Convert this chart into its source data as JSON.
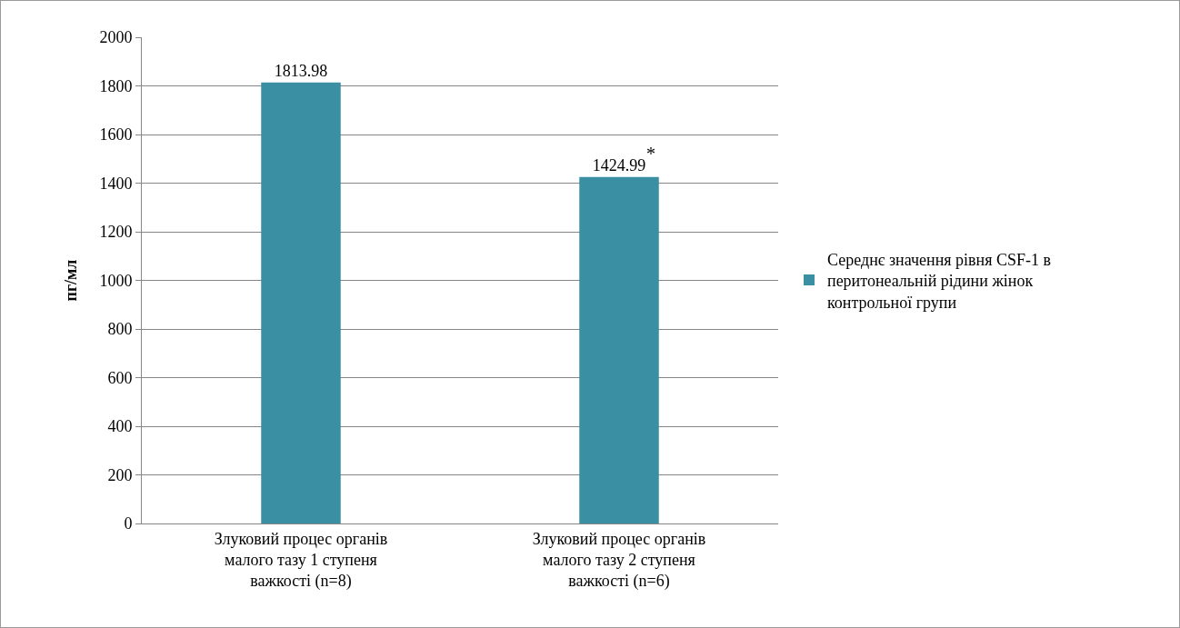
{
  "chart_data": {
    "type": "bar",
    "ylabel": "пг/мл",
    "categories": [
      "Злуковий процес органів малого тазу 1 ступеня важкості (n=8)",
      "Злуковий процес органів малого тазу 2 ступеня важкості (n=6)"
    ],
    "series": [
      {
        "name": "Середнє значення рівня CSF-1 в перитонеальній рідини жінок контрольної групи",
        "color": "#3a8fa3",
        "values": [
          1813.98,
          1424.99
        ],
        "value_labels": [
          "1813.98",
          "1424.99"
        ]
      }
    ],
    "ylim": [
      0,
      2000
    ],
    "yticks": [
      0,
      200,
      400,
      600,
      800,
      1000,
      1200,
      1400,
      1600,
      1800,
      2000
    ],
    "grid": "y",
    "legend": "right",
    "annotations": [
      {
        "text": "*",
        "x": "Злуковий процес органів малого тазу 2 ступеня важкості (n=6)",
        "y": 1424.99
      }
    ]
  }
}
